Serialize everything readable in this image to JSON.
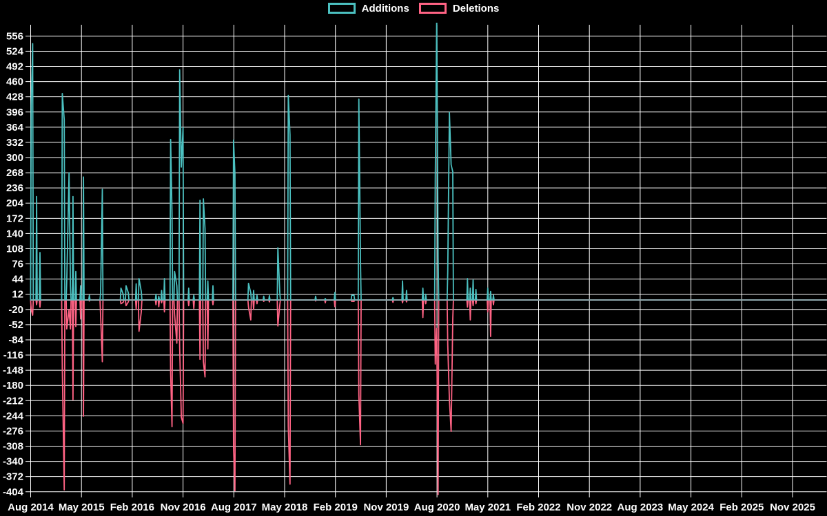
{
  "legend": {
    "position": "top",
    "items": [
      {
        "label": "Additions",
        "color": "#4bc0c0"
      },
      {
        "label": "Deletions",
        "color": "#ff6384"
      }
    ]
  },
  "chart_data": {
    "type": "line",
    "title": "",
    "xlabel": "",
    "ylabel": "",
    "grid": true,
    "background_color": "#000000",
    "grid_color": "#ffffff",
    "text_color": "#ffffff",
    "zero_line_color": "#8fa8ad",
    "x_axis": {
      "labels": [
        "Aug 2014",
        "May 2015",
        "Feb 2016",
        "Nov 2016",
        "Aug 2017",
        "May 2018",
        "Feb 2019",
        "Nov 2019",
        "Aug 2020",
        "May 2021",
        "Feb 2022",
        "Nov 2022",
        "Aug 2023",
        "May 2024",
        "Feb 2025",
        "Nov 2025"
      ],
      "label_step_months": 9,
      "range_months": [
        0,
        141
      ]
    },
    "y_axis": {
      "min": -404,
      "max": 556,
      "step": 32,
      "ticks": [
        556,
        524,
        492,
        460,
        428,
        396,
        364,
        332,
        300,
        268,
        236,
        204,
        172,
        140,
        108,
        76,
        44,
        12,
        -20,
        -52,
        -84,
        -116,
        -148,
        -180,
        -212,
        -244,
        -276,
        -308,
        -340,
        -372,
        -404
      ]
    },
    "series": [
      {
        "name": "Additions",
        "color": "#4bc0c0"
      },
      {
        "name": "Deletions",
        "color": "#ff6384"
      }
    ],
    "points_format": "[month_offset_from_Aug_2014, additions, deletions]; value 0 between spikes",
    "points": [
      [
        0.1,
        410,
        -20
      ],
      [
        0.35,
        540,
        -32
      ],
      [
        1.05,
        218,
        -10
      ],
      [
        1.65,
        100,
        -15
      ],
      [
        5.6,
        435,
        -144
      ],
      [
        5.95,
        380,
        -400
      ],
      [
        6.4,
        40,
        -61
      ],
      [
        6.8,
        268,
        -20
      ],
      [
        7.05,
        30,
        -61
      ],
      [
        7.5,
        218,
        -210
      ],
      [
        8.0,
        60,
        -56
      ],
      [
        8.85,
        30,
        -40
      ],
      [
        9.35,
        259,
        -245
      ],
      [
        10.4,
        10,
        -2
      ],
      [
        12.4,
        15,
        -33
      ],
      [
        12.7,
        233,
        -130
      ],
      [
        16.0,
        25,
        -8
      ],
      [
        16.4,
        12,
        -5
      ],
      [
        16.9,
        30,
        -12
      ],
      [
        17.3,
        15,
        -4
      ],
      [
        18.7,
        34,
        -20
      ],
      [
        19.2,
        45,
        -66
      ],
      [
        19.6,
        18,
        -25
      ],
      [
        22.2,
        12,
        -10
      ],
      [
        22.7,
        8,
        -14
      ],
      [
        23.2,
        20,
        -6
      ],
      [
        23.7,
        45,
        -25
      ],
      [
        24.8,
        338,
        -154
      ],
      [
        25.05,
        184,
        -267
      ],
      [
        25.5,
        60,
        -30
      ],
      [
        25.9,
        30,
        -91
      ],
      [
        26.4,
        485,
        -100
      ],
      [
        26.7,
        280,
        -247
      ],
      [
        27.0,
        363,
        -260
      ],
      [
        28.0,
        25,
        -12
      ],
      [
        28.9,
        10,
        -18
      ],
      [
        30.0,
        210,
        -125
      ],
      [
        30.6,
        213,
        -130
      ],
      [
        30.9,
        150,
        -162
      ],
      [
        31.4,
        40,
        -103
      ],
      [
        32.3,
        30,
        -10
      ],
      [
        35.95,
        337,
        -310
      ],
      [
        36.2,
        266,
        -402
      ],
      [
        38.6,
        35,
        -15
      ],
      [
        39.0,
        15,
        -42
      ],
      [
        39.5,
        20,
        -20
      ],
      [
        40.1,
        10,
        -8
      ],
      [
        41.3,
        8,
        -3
      ],
      [
        42.3,
        9,
        -4
      ],
      [
        43.8,
        110,
        -55
      ],
      [
        44.15,
        15,
        -10
      ],
      [
        45.65,
        431,
        -266
      ],
      [
        45.95,
        348,
        -388
      ],
      [
        50.5,
        8,
        -2
      ],
      [
        52.2,
        3,
        -6
      ],
      [
        53.9,
        16,
        -14
      ],
      [
        56.9,
        10,
        -3
      ],
      [
        57.3,
        10,
        -3
      ],
      [
        58.15,
        423,
        -200
      ],
      [
        58.45,
        80,
        -305
      ],
      [
        64.2,
        5,
        -5
      ],
      [
        65.9,
        40,
        -6
      ],
      [
        66.6,
        20,
        -4
      ],
      [
        69.5,
        25,
        -37
      ],
      [
        70.0,
        12,
        -8
      ],
      [
        71.7,
        254,
        -135
      ],
      [
        71.95,
        600,
        -60
      ],
      [
        72.2,
        90,
        -410
      ],
      [
        73.9,
        60,
        -94
      ],
      [
        74.2,
        395,
        -211
      ],
      [
        74.5,
        285,
        -277
      ],
      [
        74.8,
        270,
        -40
      ],
      [
        77.4,
        45,
        -15
      ],
      [
        77.9,
        25,
        -42
      ],
      [
        78.4,
        42,
        -12
      ],
      [
        78.9,
        22,
        -8
      ],
      [
        81.0,
        25,
        -25
      ],
      [
        81.5,
        18,
        -77
      ],
      [
        82.0,
        10,
        -10
      ]
    ]
  }
}
